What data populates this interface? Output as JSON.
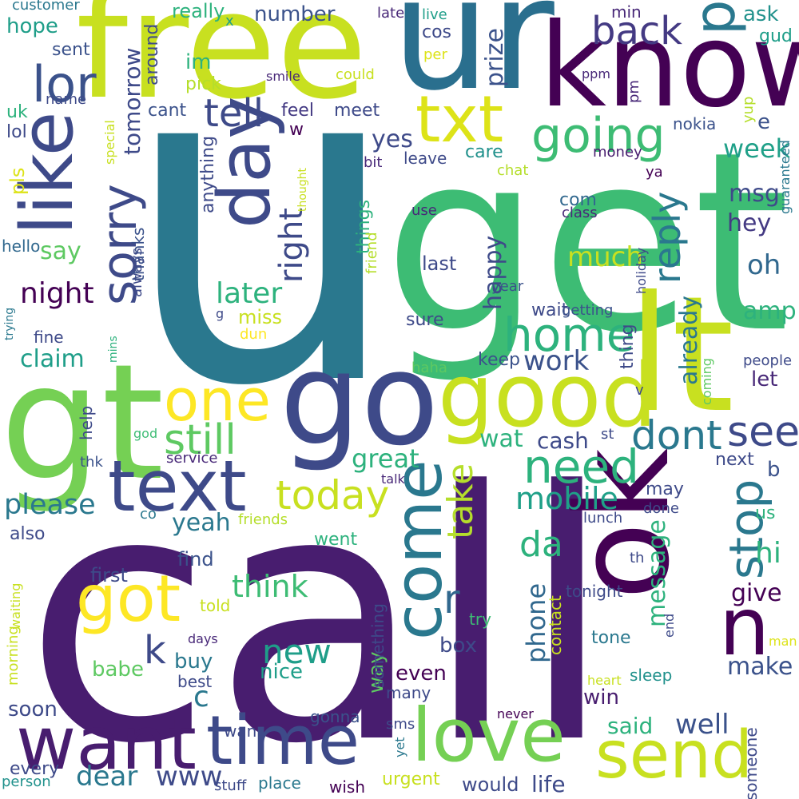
{
  "words": [
    {
      "text": "u",
      "color": "#2a788e"
    },
    {
      "text": "call",
      "color": "#481d6f"
    },
    {
      "text": "get",
      "color": "#3dbc74"
    },
    {
      "text": "ur",
      "color": "#2a6f8e"
    },
    {
      "text": "free",
      "color": "#c8e020"
    },
    {
      "text": "know",
      "color": "#440154"
    },
    {
      "text": "gt",
      "color": "#75d054"
    },
    {
      "text": "lt",
      "color": "#c8e020"
    },
    {
      "text": "go",
      "color": "#3e4a89"
    },
    {
      "text": "ok",
      "color": "#440154"
    },
    {
      "text": "like",
      "color": "#3e4a89"
    },
    {
      "text": "good",
      "color": "#c8e020"
    },
    {
      "text": "day",
      "color": "#3e4a89"
    },
    {
      "text": "txt",
      "color": "#dde318"
    },
    {
      "text": "text",
      "color": "#3e4a89"
    },
    {
      "text": "come",
      "color": "#2a788e"
    },
    {
      "text": "time",
      "color": "#3e4a89"
    },
    {
      "text": "want",
      "color": "#481d6f"
    },
    {
      "text": "love",
      "color": "#75d054"
    },
    {
      "text": "send",
      "color": "#c8e020"
    },
    {
      "text": "got",
      "color": "#fde725"
    },
    {
      "text": "one",
      "color": "#fde725"
    },
    {
      "text": "home",
      "color": "#2db27d"
    },
    {
      "text": "going",
      "color": "#3dbc74"
    },
    {
      "text": "n",
      "color": "#440154"
    },
    {
      "text": "p",
      "color": "#2a788e"
    },
    {
      "text": "need",
      "color": "#2db27d"
    },
    {
      "text": "sorry",
      "color": "#3e4a89"
    },
    {
      "text": "lor",
      "color": "#3b528b"
    },
    {
      "text": "still",
      "color": "#5ec962"
    },
    {
      "text": "dont",
      "color": "#2a788e"
    },
    {
      "text": "today",
      "color": "#c8e020"
    },
    {
      "text": "see",
      "color": "#3e4a89"
    },
    {
      "text": "stop",
      "color": "#2a788e"
    },
    {
      "text": "reply",
      "color": "#2a788e"
    },
    {
      "text": "take",
      "color": "#b5de2b"
    },
    {
      "text": "r",
      "color": "#31688e"
    },
    {
      "text": "back",
      "color": "#443a83"
    },
    {
      "text": "tell",
      "color": "#3e4a89"
    },
    {
      "text": "right",
      "color": "#3e4a89"
    },
    {
      "text": "later",
      "color": "#2db27d"
    },
    {
      "text": "night",
      "color": "#440154"
    },
    {
      "text": "mobile",
      "color": "#1fa088"
    },
    {
      "text": "da",
      "color": "#2db27d"
    },
    {
      "text": "great",
      "color": "#2db27d"
    },
    {
      "text": "please",
      "color": "#2a788e"
    },
    {
      "text": "think",
      "color": "#3dbc74"
    },
    {
      "text": "k",
      "color": "#3e4a89"
    },
    {
      "text": "new",
      "color": "#1f9e89"
    },
    {
      "text": "message",
      "color": "#2db27d"
    },
    {
      "text": "phone",
      "color": "#31688e"
    },
    {
      "text": "hi",
      "color": "#2db27d"
    },
    {
      "text": "already",
      "color": "#2a788e"
    },
    {
      "text": "week",
      "color": "#1fa088"
    },
    {
      "text": "much",
      "color": "#c8e020"
    },
    {
      "text": "hey",
      "color": "#443a83"
    },
    {
      "text": "msg",
      "color": "#3e4a89"
    },
    {
      "text": "oh",
      "color": "#31688e"
    },
    {
      "text": "happy",
      "color": "#3e4a89"
    },
    {
      "text": "tomorrow",
      "color": "#3e4a89"
    },
    {
      "text": "claim",
      "color": "#1f9e89"
    },
    {
      "text": "say",
      "color": "#5ec962"
    },
    {
      "text": "yes",
      "color": "#3e4a89"
    },
    {
      "text": "work",
      "color": "#3b528b"
    },
    {
      "text": "cash",
      "color": "#3e4a89"
    },
    {
      "text": "wat",
      "color": "#2db27d"
    },
    {
      "text": "amp",
      "color": "#2db27d"
    },
    {
      "text": "let",
      "color": "#482878"
    },
    {
      "text": "yeah",
      "color": "#2a788e"
    },
    {
      "text": "way",
      "color": "#5ec962"
    },
    {
      "text": "give",
      "color": "#440154"
    },
    {
      "text": "make",
      "color": "#3b528b"
    },
    {
      "text": "well",
      "color": "#3b528b"
    },
    {
      "text": "said",
      "color": "#2db27d"
    },
    {
      "text": "www",
      "color": "#3e4a89"
    },
    {
      "text": "dear",
      "color": "#2a788e"
    },
    {
      "text": "c",
      "color": "#2a788e"
    },
    {
      "text": "nice",
      "color": "#1f9e89"
    },
    {
      "text": "babe",
      "color": "#5ec962"
    },
    {
      "text": "buy",
      "color": "#2a788e"
    },
    {
      "text": "box",
      "color": "#3e4a89"
    },
    {
      "text": "even",
      "color": "#440154"
    },
    {
      "text": "win",
      "color": "#481d6f"
    },
    {
      "text": "soon",
      "color": "#3e4a89"
    },
    {
      "text": "number",
      "color": "#3b528b"
    },
    {
      "text": "hope",
      "color": "#1f9e89"
    },
    {
      "text": "customer",
      "color": "#2a788e"
    },
    {
      "text": "really",
      "color": "#2db27d"
    },
    {
      "text": "ask",
      "color": "#21918c"
    },
    {
      "text": "min",
      "color": "#482878"
    },
    {
      "text": "gud",
      "color": "#1f9e89"
    },
    {
      "text": "x",
      "color": "#1f9e89"
    },
    {
      "text": "late",
      "color": "#482878"
    },
    {
      "text": "live",
      "color": "#1f9e89"
    },
    {
      "text": "cos",
      "color": "#3e4a89"
    },
    {
      "text": "sent",
      "color": "#3b528b"
    },
    {
      "text": "per",
      "color": "#dde318"
    },
    {
      "text": "prize",
      "color": "#3b528b"
    },
    {
      "text": "ppm",
      "color": "#482878"
    },
    {
      "text": "pm",
      "color": "#482878"
    },
    {
      "text": "around",
      "color": "#3e4a89"
    },
    {
      "text": "im",
      "color": "#2db27d"
    },
    {
      "text": "pick",
      "color": "#b5de2b"
    },
    {
      "text": "smile",
      "color": "#482878"
    },
    {
      "text": "could",
      "color": "#c8e020"
    },
    {
      "text": "name",
      "color": "#3e4a89"
    },
    {
      "text": "uk",
      "color": "#2db27d"
    },
    {
      "text": "cant",
      "color": "#3b528b"
    },
    {
      "text": "feel",
      "color": "#443a83"
    },
    {
      "text": "meet",
      "color": "#3e4a89"
    },
    {
      "text": "w",
      "color": "#440154"
    },
    {
      "text": "nokia",
      "color": "#3b528b"
    },
    {
      "text": "yup",
      "color": "#b5de2b"
    },
    {
      "text": "e",
      "color": "#3b528b"
    },
    {
      "text": "lol",
      "color": "#3e4a89"
    },
    {
      "text": "special",
      "color": "#c8e020"
    },
    {
      "text": "care",
      "color": "#21918c"
    },
    {
      "text": "money",
      "color": "#481d6f"
    },
    {
      "text": "bit",
      "color": "#482878"
    },
    {
      "text": "leave",
      "color": "#3e4a89"
    },
    {
      "text": "anything",
      "color": "#3e4a89"
    },
    {
      "text": "chat",
      "color": "#b5de2b"
    },
    {
      "text": "ya",
      "color": "#440154"
    },
    {
      "text": "guaranteed",
      "color": "#2a788e"
    },
    {
      "text": "pls",
      "color": "#dde318"
    },
    {
      "text": "thought",
      "color": "#c8e020"
    },
    {
      "text": "com",
      "color": "#31688e"
    },
    {
      "text": "class",
      "color": "#482878"
    },
    {
      "text": "use",
      "color": "#482878"
    },
    {
      "text": "things",
      "color": "#2db27d"
    },
    {
      "text": "hello",
      "color": "#31688e"
    },
    {
      "text": "thanks",
      "color": "#3b528b"
    },
    {
      "text": "always",
      "color": "#3e4a89"
    },
    {
      "text": "friend",
      "color": "#b5de2b"
    },
    {
      "text": "last",
      "color": "#3e4a89"
    },
    {
      "text": "holiday",
      "color": "#3e4a89"
    },
    {
      "text": "year",
      "color": "#3b528b"
    },
    {
      "text": "miss",
      "color": "#c8e020"
    },
    {
      "text": "sure",
      "color": "#3e4a89"
    },
    {
      "text": "wait",
      "color": "#3e4a89"
    },
    {
      "text": "getting",
      "color": "#3b528b"
    },
    {
      "text": "g",
      "color": "#3e4a89"
    },
    {
      "text": "dun",
      "color": "#fde725"
    },
    {
      "text": "trying",
      "color": "#2a788e"
    },
    {
      "text": "fine",
      "color": "#3e4a89"
    },
    {
      "text": "mins",
      "color": "#2db27d"
    },
    {
      "text": "thing",
      "color": "#3e4a89"
    },
    {
      "text": "coming",
      "color": "#5ec962"
    },
    {
      "text": "people",
      "color": "#3e4a89"
    },
    {
      "text": "v",
      "color": "#3e4a89"
    },
    {
      "text": "haha",
      "color": "#5ec962"
    },
    {
      "text": "keep",
      "color": "#3b528b"
    },
    {
      "text": "help",
      "color": "#3e4a89"
    },
    {
      "text": "god",
      "color": "#3dbc74"
    },
    {
      "text": "thk",
      "color": "#3b528b"
    },
    {
      "text": "service",
      "color": "#482878"
    },
    {
      "text": "st",
      "color": "#3e4a89"
    },
    {
      "text": "next",
      "color": "#3e4a89"
    },
    {
      "text": "b",
      "color": "#3b528b"
    },
    {
      "text": "talk",
      "color": "#482878"
    },
    {
      "text": "co",
      "color": "#2a788e"
    },
    {
      "text": "may",
      "color": "#3e4a89"
    },
    {
      "text": "done",
      "color": "#3e4a89"
    },
    {
      "text": "us",
      "color": "#2db27d"
    },
    {
      "text": "also",
      "color": "#3e4a89"
    },
    {
      "text": "friends",
      "color": "#b5de2b"
    },
    {
      "text": "went",
      "color": "#2db27d"
    },
    {
      "text": "lunch",
      "color": "#3e4a89"
    },
    {
      "text": "find",
      "color": "#3b528b"
    },
    {
      "text": "first",
      "color": "#3e4a89"
    },
    {
      "text": "th",
      "color": "#3e4a89"
    },
    {
      "text": "tonight",
      "color": "#3e4a89"
    },
    {
      "text": "contact",
      "color": "#c8e020"
    },
    {
      "text": "something",
      "color": "#3e4a89"
    },
    {
      "text": "waiting",
      "color": "#c8e020"
    },
    {
      "text": "morning",
      "color": "#c8e020"
    },
    {
      "text": "told",
      "color": "#c8e020"
    },
    {
      "text": "try",
      "color": "#3dbc74"
    },
    {
      "text": "tone",
      "color": "#2a788e"
    },
    {
      "text": "end",
      "color": "#3e4a89"
    },
    {
      "text": "man",
      "color": "#dde318"
    },
    {
      "text": "days",
      "color": "#482878"
    },
    {
      "text": "best",
      "color": "#3e4a89"
    },
    {
      "text": "many",
      "color": "#3e4a89"
    },
    {
      "text": "heart",
      "color": "#c8e020"
    },
    {
      "text": "sleep",
      "color": "#21918c"
    },
    {
      "text": "gonna",
      "color": "#3b528b"
    },
    {
      "text": "never",
      "color": "#440154"
    },
    {
      "text": "sms",
      "color": "#3e4a89"
    },
    {
      "text": "wan",
      "color": "#3e4a89"
    },
    {
      "text": "yet",
      "color": "#2a788e"
    },
    {
      "text": "someone",
      "color": "#3e4a89"
    },
    {
      "text": "every",
      "color": "#3e4a89"
    },
    {
      "text": "person",
      "color": "#21918c"
    },
    {
      "text": "stuff",
      "color": "#3e4a89"
    },
    {
      "text": "place",
      "color": "#2a788e"
    },
    {
      "text": "wish",
      "color": "#440154"
    },
    {
      "text": "urgent",
      "color": "#c8e020"
    },
    {
      "text": "would",
      "color": "#3e4a89"
    },
    {
      "text": "life",
      "color": "#3e4a89"
    }
  ]
}
